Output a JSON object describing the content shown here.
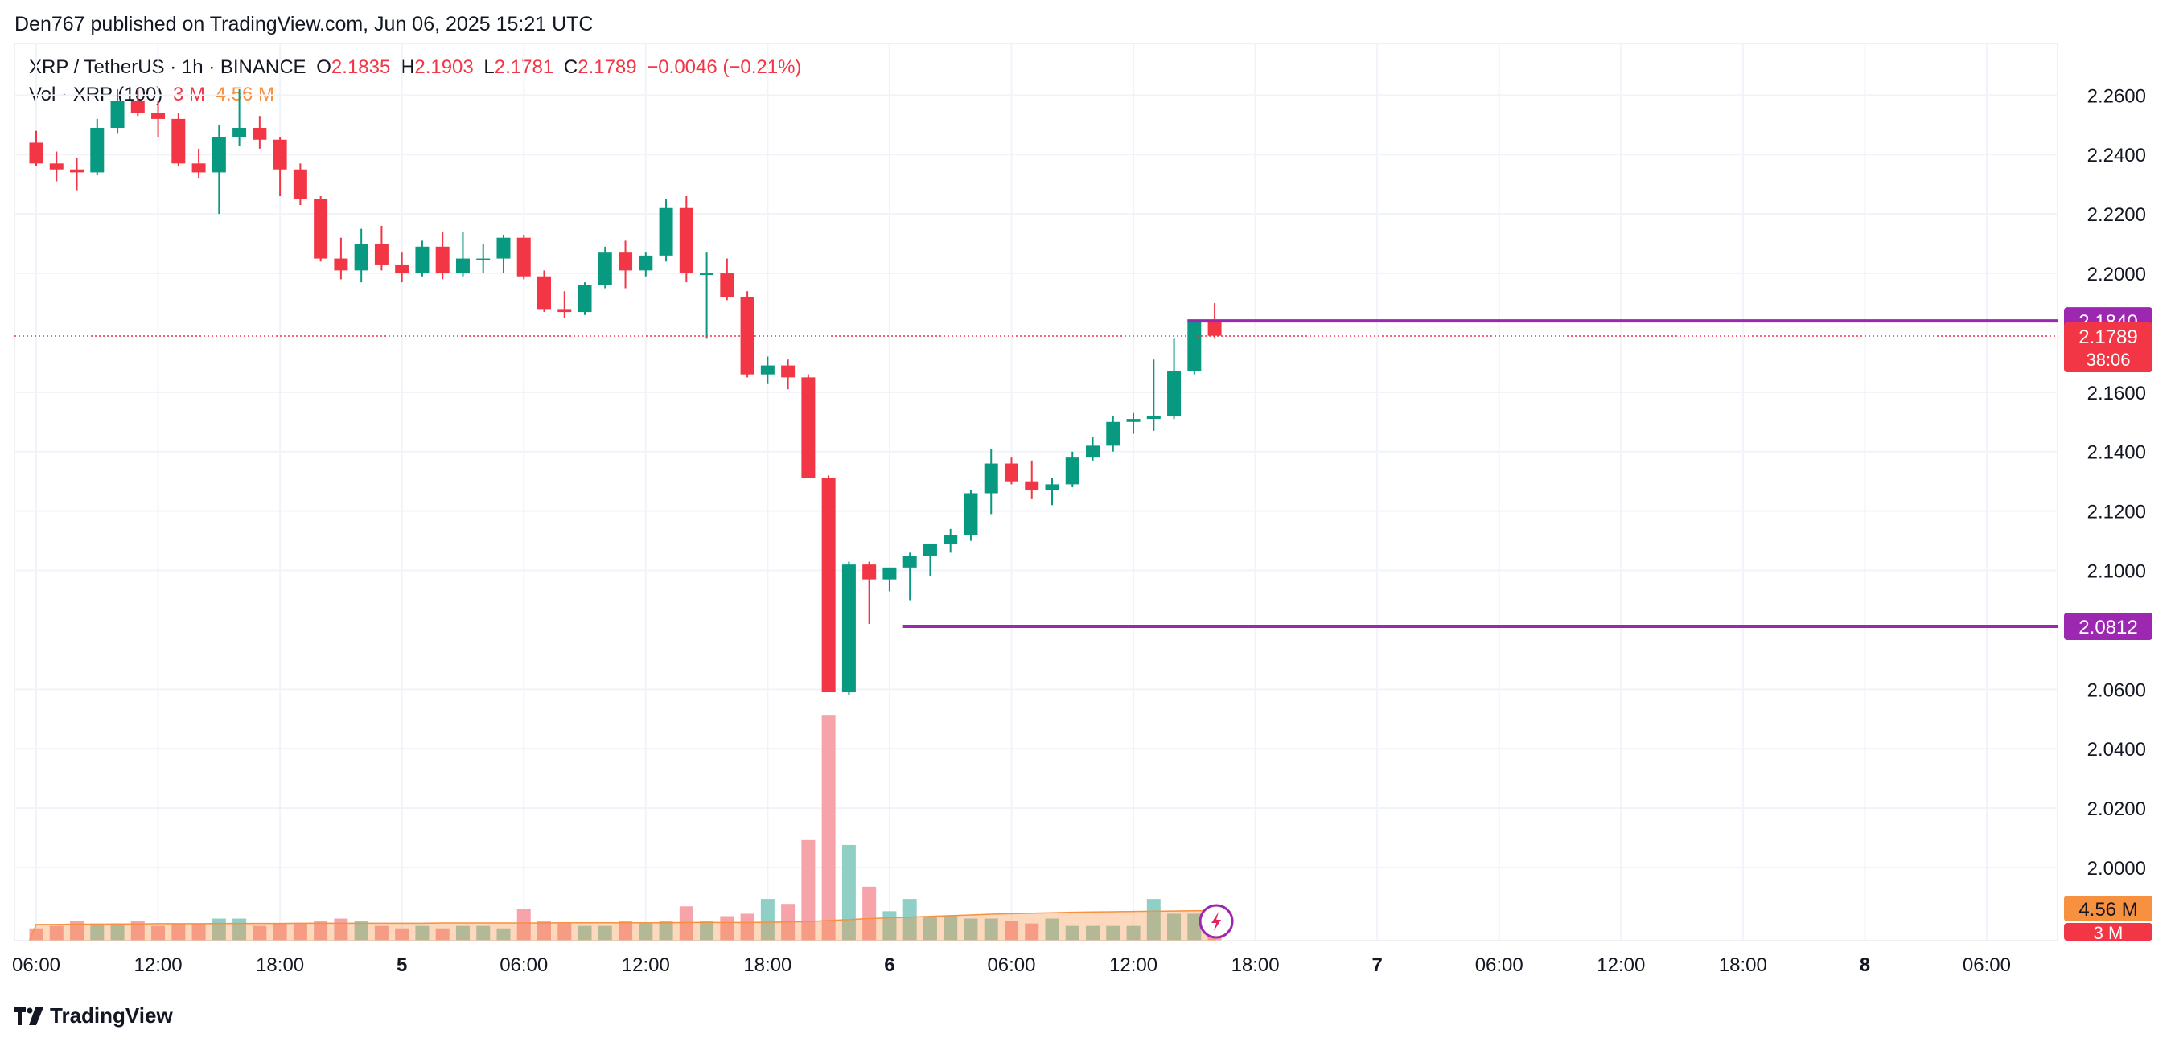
{
  "header": {
    "published": "Den767 published on TradingView.com, Jun 06, 2025 15:21 UTC"
  },
  "legend": {
    "symbol": "XRP / TetherUS · 1h · BINANCE",
    "o_label": "O",
    "o_value": "2.1835",
    "h_label": "H",
    "h_value": "2.1903",
    "l_label": "L",
    "l_value": "2.1781",
    "c_label": "C",
    "c_value": "2.1789",
    "change": "−0.0046 (−0.21%)",
    "vol_label": "Vol · XRP (100)",
    "vol_value1": "3 M",
    "vol_value2": "4.56 M"
  },
  "footer": {
    "brand": "TradingView"
  },
  "colors": {
    "up": "#089981",
    "down": "#f23645",
    "level_line": "#9c27b0",
    "vol_up": "#8fcfc6",
    "vol_down": "#f6a3a9",
    "vol_ma": "#f7903f",
    "grid": "#f0f3fa"
  },
  "chart_data": {
    "type": "candlestick",
    "y_axis": {
      "min": 1.99,
      "max": 2.272,
      "ticks": [
        "2.0000",
        "2.0200",
        "2.0400",
        "2.0600",
        "2.1000",
        "2.1200",
        "2.1400",
        "2.1600",
        "2.2000",
        "2.2200",
        "2.2400",
        "2.2600"
      ]
    },
    "x_axis": {
      "ticks": [
        {
          "label": "06:00",
          "bold": false,
          "idx": 0
        },
        {
          "label": "12:00",
          "bold": false,
          "idx": 6
        },
        {
          "label": "18:00",
          "bold": false,
          "idx": 12
        },
        {
          "label": "5",
          "bold": true,
          "idx": 18
        },
        {
          "label": "06:00",
          "bold": false,
          "idx": 24
        },
        {
          "label": "12:00",
          "bold": false,
          "idx": 30
        },
        {
          "label": "18:00",
          "bold": false,
          "idx": 36
        },
        {
          "label": "6",
          "bold": true,
          "idx": 42
        },
        {
          "label": "06:00",
          "bold": false,
          "idx": 48
        },
        {
          "label": "12:00",
          "bold": false,
          "idx": 54
        },
        {
          "label": "18:00",
          "bold": false,
          "idx": 60
        },
        {
          "label": "7",
          "bold": true,
          "idx": 66
        },
        {
          "label": "06:00",
          "bold": false,
          "idx": 72
        },
        {
          "label": "12:00",
          "bold": false,
          "idx": 78
        },
        {
          "label": "18:00",
          "bold": false,
          "idx": 84
        },
        {
          "label": "8",
          "bold": true,
          "idx": 90
        },
        {
          "label": "06:00",
          "bold": false,
          "idx": 96
        }
      ]
    },
    "candles": [
      [
        2.244,
        2.248,
        2.236,
        2.237
      ],
      [
        2.237,
        2.241,
        2.231,
        2.235
      ],
      [
        2.235,
        2.239,
        2.228,
        2.234
      ],
      [
        2.234,
        2.252,
        2.233,
        2.249
      ],
      [
        2.249,
        2.262,
        2.247,
        2.258
      ],
      [
        2.258,
        2.262,
        2.253,
        2.254
      ],
      [
        2.254,
        2.258,
        2.246,
        2.252
      ],
      [
        2.252,
        2.254,
        2.236,
        2.237
      ],
      [
        2.237,
        2.242,
        2.232,
        2.234
      ],
      [
        2.234,
        2.25,
        2.22,
        2.246
      ],
      [
        2.246,
        2.262,
        2.243,
        2.249
      ],
      [
        2.249,
        2.253,
        2.242,
        2.245
      ],
      [
        2.245,
        2.246,
        2.226,
        2.235
      ],
      [
        2.235,
        2.237,
        2.223,
        2.225
      ],
      [
        2.225,
        2.226,
        2.204,
        2.205
      ],
      [
        2.205,
        2.212,
        2.198,
        2.201
      ],
      [
        2.201,
        2.215,
        2.197,
        2.21
      ],
      [
        2.21,
        2.216,
        2.201,
        2.203
      ],
      [
        2.203,
        2.207,
        2.197,
        2.2
      ],
      [
        2.2,
        2.211,
        2.199,
        2.209
      ],
      [
        2.209,
        2.214,
        2.198,
        2.2
      ],
      [
        2.2,
        2.214,
        2.199,
        2.205
      ],
      [
        2.205,
        2.21,
        2.2,
        2.205
      ],
      [
        2.205,
        2.213,
        2.2,
        2.212
      ],
      [
        2.212,
        2.213,
        2.198,
        2.199
      ],
      [
        2.199,
        2.201,
        2.187,
        2.188
      ],
      [
        2.188,
        2.194,
        2.185,
        2.187
      ],
      [
        2.187,
        2.197,
        2.186,
        2.196
      ],
      [
        2.196,
        2.209,
        2.195,
        2.207
      ],
      [
        2.207,
        2.211,
        2.195,
        2.201
      ],
      [
        2.201,
        2.207,
        2.199,
        2.206
      ],
      [
        2.206,
        2.225,
        2.204,
        2.222
      ],
      [
        2.222,
        2.226,
        2.197,
        2.2
      ],
      [
        2.2,
        2.207,
        2.178,
        2.2
      ],
      [
        2.2,
        2.205,
        2.191,
        2.192
      ],
      [
        2.192,
        2.194,
        2.165,
        2.166
      ],
      [
        2.166,
        2.172,
        2.163,
        2.169
      ],
      [
        2.169,
        2.171,
        2.161,
        2.165
      ],
      [
        2.165,
        2.166,
        2.131,
        2.131
      ],
      [
        2.131,
        2.132,
        2.059,
        2.059
      ],
      [
        2.059,
        2.103,
        2.058,
        2.102
      ],
      [
        2.102,
        2.103,
        2.082,
        2.097
      ],
      [
        2.097,
        2.101,
        2.093,
        2.101
      ],
      [
        2.101,
        2.106,
        2.09,
        2.105
      ],
      [
        2.105,
        2.109,
        2.098,
        2.109
      ],
      [
        2.109,
        2.114,
        2.106,
        2.112
      ],
      [
        2.112,
        2.127,
        2.11,
        2.126
      ],
      [
        2.126,
        2.141,
        2.119,
        2.136
      ],
      [
        2.136,
        2.138,
        2.129,
        2.13
      ],
      [
        2.13,
        2.137,
        2.124,
        2.127
      ],
      [
        2.127,
        2.131,
        2.122,
        2.129
      ],
      [
        2.129,
        2.14,
        2.128,
        2.138
      ],
      [
        2.138,
        2.145,
        2.137,
        2.142
      ],
      [
        2.142,
        2.152,
        2.14,
        2.15
      ],
      [
        2.15,
        2.153,
        2.146,
        2.151
      ],
      [
        2.151,
        2.171,
        2.147,
        2.152
      ],
      [
        2.152,
        2.178,
        2.151,
        2.167
      ],
      [
        2.167,
        2.184,
        2.166,
        2.184
      ],
      [
        2.184,
        2.19,
        2.178,
        2.179
      ]
    ],
    "volume_max": 9.5,
    "volume": [
      0.5,
      0.6,
      0.8,
      0.7,
      0.7,
      0.8,
      0.6,
      0.7,
      0.7,
      0.9,
      0.9,
      0.6,
      0.7,
      0.7,
      0.8,
      0.9,
      0.8,
      0.6,
      0.5,
      0.6,
      0.5,
      0.6,
      0.6,
      0.5,
      1.3,
      0.8,
      0.7,
      0.6,
      0.6,
      0.8,
      0.7,
      0.8,
      1.4,
      0.8,
      1.0,
      1.1,
      1.7,
      1.5,
      4.1,
      9.2,
      3.9,
      2.2,
      1.2,
      1.7,
      1.0,
      1.0,
      0.9,
      0.9,
      0.8,
      0.7,
      0.9,
      0.6,
      0.6,
      0.6,
      0.6,
      1.7,
      1.1,
      1.1,
      1.1
    ],
    "volume_ma": [
      0.66,
      0.66,
      0.67,
      0.67,
      0.68,
      0.68,
      0.69,
      0.69,
      0.69,
      0.7,
      0.7,
      0.7,
      0.7,
      0.71,
      0.71,
      0.71,
      0.71,
      0.71,
      0.71,
      0.71,
      0.72,
      0.72,
      0.72,
      0.72,
      0.72,
      0.72,
      0.73,
      0.73,
      0.73,
      0.73,
      0.73,
      0.73,
      0.74,
      0.74,
      0.74,
      0.74,
      0.75,
      0.76,
      0.78,
      0.82,
      0.86,
      0.9,
      0.93,
      0.96,
      0.99,
      1.02,
      1.05,
      1.08,
      1.1,
      1.12,
      1.14,
      1.16,
      1.17,
      1.18,
      1.19,
      1.2,
      1.21,
      1.22,
      1.23
    ],
    "levels": [
      {
        "price": 2.184,
        "label": "2.1840",
        "from_idx": 57
      },
      {
        "price": 2.0812,
        "label": "2.0812",
        "from_idx": 43
      }
    ],
    "last_price": {
      "price": 2.1789,
      "label": "2.1789",
      "countdown": "38:06"
    },
    "volume_labels": {
      "ma": "4.56 M",
      "last": "3 M"
    }
  }
}
